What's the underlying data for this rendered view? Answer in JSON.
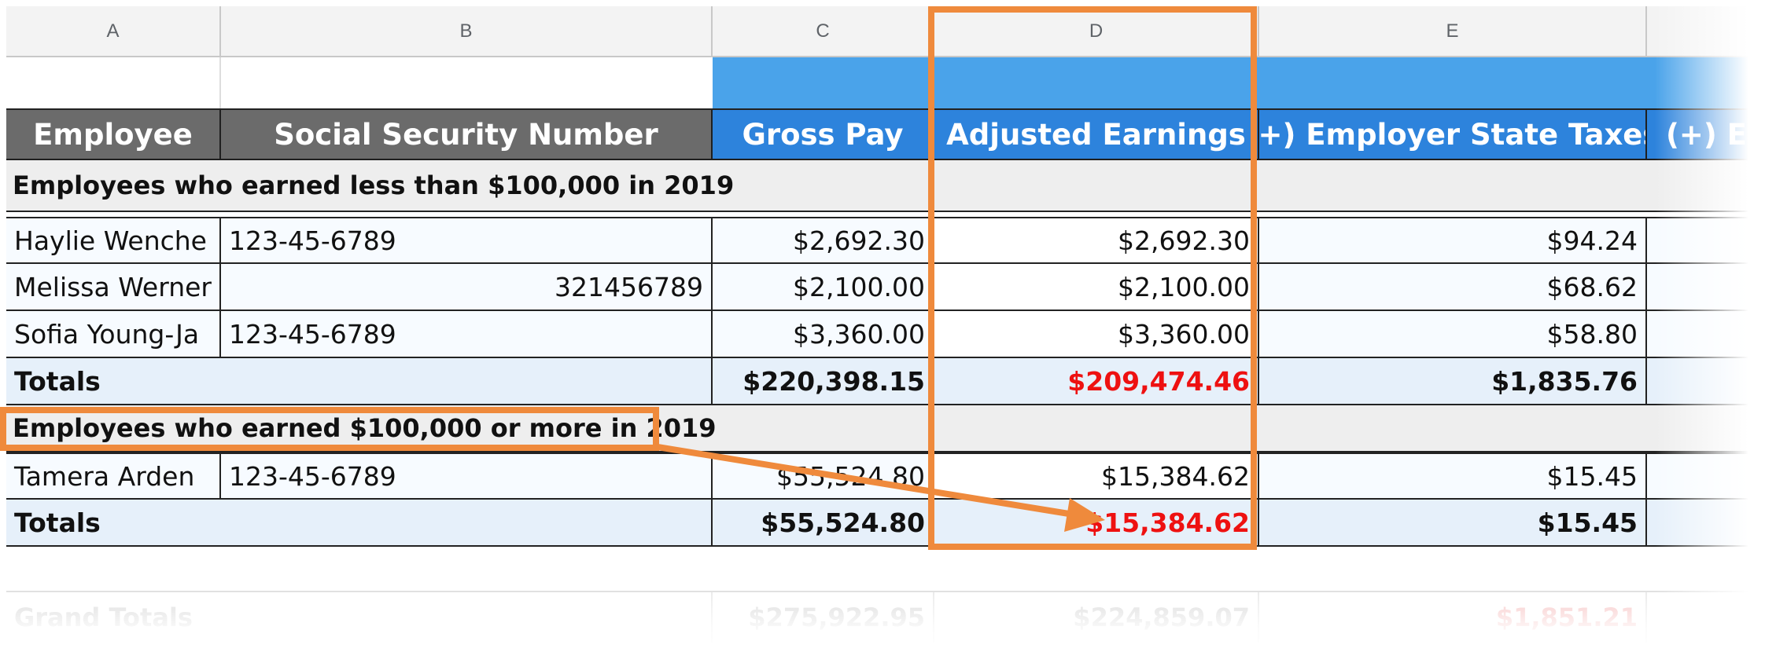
{
  "columns": [
    "A",
    "B",
    "C",
    "D",
    "E"
  ],
  "headers": {
    "employee": "Employee",
    "ssn": "Social Security Number",
    "gross_pay": "Gross Pay",
    "adjusted_earnings": "Adjusted Earnings",
    "employer_state_taxes": "(+) Employer State Taxes",
    "next_col_partial": "(+) Em"
  },
  "section1": {
    "title": "Employees who earned less than $100,000 in 2019",
    "rows": [
      {
        "employee": "Haylie Wenche",
        "ssn": "123-45-6789",
        "gross_pay": "$2,692.30",
        "adjusted": "$2,692.30",
        "state_taxes": "$94.24"
      },
      {
        "employee": "Melissa Werner",
        "ssn": "321456789",
        "gross_pay": "$2,100.00",
        "adjusted": "$2,100.00",
        "state_taxes": "$68.62"
      },
      {
        "employee": "Sofia Young-Ja",
        "ssn": "123-45-6789",
        "gross_pay": "$3,360.00",
        "adjusted": "$3,360.00",
        "state_taxes": "$58.80"
      }
    ],
    "totals": {
      "label": "Totals",
      "gross_pay": "$220,398.15",
      "adjusted": "$209,474.46",
      "state_taxes": "$1,835.76"
    }
  },
  "section2": {
    "title": "Employees who earned $100,000 or more in 2019",
    "rows": [
      {
        "employee": "Tamera Arden",
        "ssn": "123-45-6789",
        "gross_pay": "$55,524.80",
        "adjusted": "$15,384.62",
        "state_taxes": "$15.45"
      }
    ],
    "totals": {
      "label": "Totals",
      "gross_pay": "$55,524.80",
      "adjusted": "$15,384.62",
      "state_taxes": "$15.45"
    }
  },
  "grand_totals": {
    "label": "Grand Totals",
    "gross_pay": "$275,922.95",
    "adjusted": "$224,859.07",
    "state_taxes": "$1,851.21"
  },
  "colors": {
    "highlight": "#ef8a3c",
    "header_blue": "#2d83dc",
    "header_gray": "#6b6b6b",
    "negative_red": "#ee1111"
  }
}
